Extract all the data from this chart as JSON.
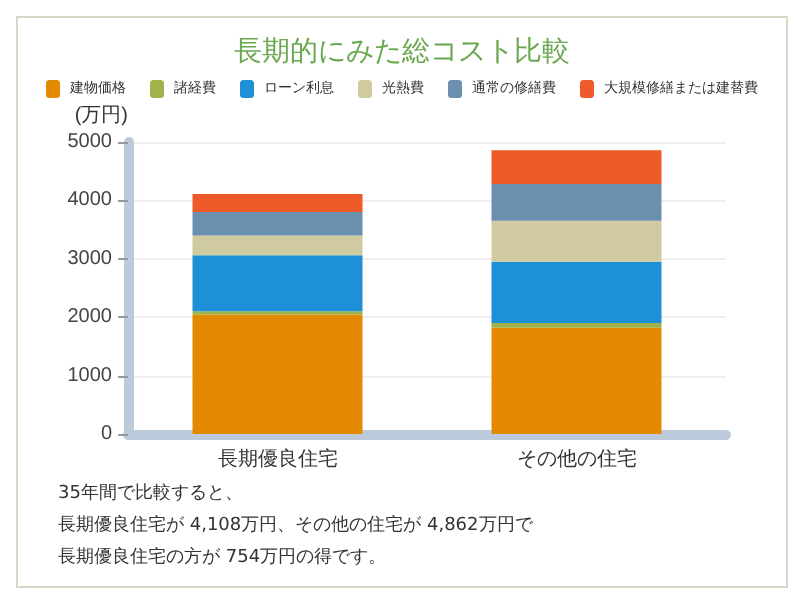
{
  "chart_data": {
    "type": "bar",
    "title": "長期的にみた総コスト比較",
    "ylabel": "(万円)",
    "categories": [
      "長期優良住宅",
      "その他の住宅"
    ],
    "stacked": true,
    "series": [
      {
        "name": "建物価格",
        "color": "#e38a00",
        "values": [
          2040,
          1820
        ]
      },
      {
        "name": "諸経費",
        "color": "#9fb34a",
        "values": [
          60,
          80
        ]
      },
      {
        "name": "ローン利息",
        "color": "#1e90d8",
        "values": [
          960,
          1050
        ]
      },
      {
        "name": "光熱費",
        "color": "#cfcaa0",
        "values": [
          340,
          700
        ]
      },
      {
        "name": "通常の修繕費",
        "color": "#6b8fae",
        "values": [
          400,
          630
        ]
      },
      {
        "name": "大規模修繕または建替費",
        "color": "#ee5a2a",
        "values": [
          310,
          580
        ]
      }
    ],
    "ylim": [
      0,
      5000
    ],
    "yticks": [
      0,
      1000,
      2000,
      3000,
      4000,
      5000
    ],
    "grid": "y",
    "legend": "top",
    "annotations": [
      "35年間で比較すると、",
      "長期優良住宅が 4,108万円、その他の住宅が 4,862万円で",
      "長期優良住宅の方が 754万円の得です。"
    ]
  }
}
